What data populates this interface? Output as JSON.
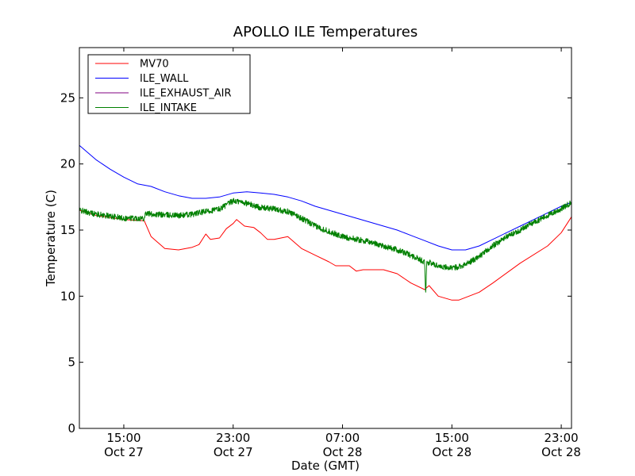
{
  "chart_data": {
    "type": "line",
    "title": "APOLLO ILE Temperatures",
    "xlabel": "Date (GMT)",
    "ylabel": "Temperature (C)",
    "xlim": [
      "Oct 27 11:45",
      "Oct 28 23:45"
    ],
    "ylim": [
      0,
      28.8
    ],
    "grid": false,
    "legend_position": "upper-left",
    "x_ticks": [
      {
        "time": "Oct 27 15:00",
        "label": [
          "15:00",
          "Oct 27"
        ]
      },
      {
        "time": "Oct 27 23:00",
        "label": [
          "23:00",
          "Oct 27"
        ]
      },
      {
        "time": "Oct 28 07:00",
        "label": [
          "07:00",
          "Oct 28"
        ]
      },
      {
        "time": "Oct 28 15:00",
        "label": [
          "15:00",
          "Oct 28"
        ]
      },
      {
        "time": "Oct 28 23:00",
        "label": [
          "23:00",
          "Oct 28"
        ]
      }
    ],
    "y_ticks": [
      0,
      5,
      10,
      15,
      20,
      25
    ],
    "series": [
      {
        "name": "MV70",
        "color": "#ff0000",
        "points": [
          [
            "Oct 27 11:45",
            16.5
          ],
          [
            "Oct 27 13:00",
            16.1
          ],
          [
            "Oct 27 15:00",
            15.8
          ],
          [
            "Oct 27 16:30",
            15.7
          ],
          [
            "Oct 27 17:00",
            14.5
          ],
          [
            "Oct 27 18:00",
            13.6
          ],
          [
            "Oct 27 19:00",
            13.5
          ],
          [
            "Oct 27 20:00",
            13.7
          ],
          [
            "Oct 27 20:30",
            13.9
          ],
          [
            "Oct 27 21:00",
            14.7
          ],
          [
            "Oct 27 21:20",
            14.3
          ],
          [
            "Oct 27 22:00",
            14.4
          ],
          [
            "Oct 27 22:30",
            15.1
          ],
          [
            "Oct 27 23:00",
            15.5
          ],
          [
            "Oct 27 23:15",
            15.8
          ],
          [
            "Oct 27 23:50",
            15.3
          ],
          [
            "Oct 28 00:30",
            15.2
          ],
          [
            "Oct 28 01:00",
            14.8
          ],
          [
            "Oct 28 01:30",
            14.3
          ],
          [
            "Oct 28 02:00",
            14.3
          ],
          [
            "Oct 28 03:00",
            14.5
          ],
          [
            "Oct 28 04:00",
            13.6
          ],
          [
            "Oct 28 05:00",
            13.1
          ],
          [
            "Oct 28 06:00",
            12.6
          ],
          [
            "Oct 28 06:30",
            12.3
          ],
          [
            "Oct 28 07:30",
            12.3
          ],
          [
            "Oct 28 08:00",
            11.9
          ],
          [
            "Oct 28 08:30",
            12.0
          ],
          [
            "Oct 28 10:00",
            12.0
          ],
          [
            "Oct 28 11:00",
            11.7
          ],
          [
            "Oct 28 12:00",
            11.0
          ],
          [
            "Oct 28 13:00",
            10.5
          ],
          [
            "Oct 28 13:20",
            10.8
          ],
          [
            "Oct 28 14:00",
            10.0
          ],
          [
            "Oct 28 15:00",
            9.7
          ],
          [
            "Oct 28 15:30",
            9.7
          ],
          [
            "Oct 28 17:00",
            10.3
          ],
          [
            "Oct 28 18:00",
            11.0
          ],
          [
            "Oct 28 20:00",
            12.5
          ],
          [
            "Oct 28 22:00",
            13.8
          ],
          [
            "Oct 28 23:00",
            14.8
          ],
          [
            "Oct 28 23:45",
            16.0
          ]
        ]
      },
      {
        "name": "ILE_WALL",
        "color": "#0000ff",
        "points": [
          [
            "Oct 27 11:45",
            21.4
          ],
          [
            "Oct 27 13:00",
            20.3
          ],
          [
            "Oct 27 14:00",
            19.6
          ],
          [
            "Oct 27 15:00",
            19.0
          ],
          [
            "Oct 27 16:00",
            18.5
          ],
          [
            "Oct 27 17:00",
            18.3
          ],
          [
            "Oct 27 18:00",
            17.9
          ],
          [
            "Oct 27 19:00",
            17.6
          ],
          [
            "Oct 27 20:00",
            17.4
          ],
          [
            "Oct 27 21:00",
            17.4
          ],
          [
            "Oct 27 22:00",
            17.5
          ],
          [
            "Oct 27 23:00",
            17.8
          ],
          [
            "Oct 28 00:00",
            17.9
          ],
          [
            "Oct 28 01:00",
            17.8
          ],
          [
            "Oct 28 02:00",
            17.7
          ],
          [
            "Oct 28 03:00",
            17.5
          ],
          [
            "Oct 28 04:00",
            17.2
          ],
          [
            "Oct 28 05:00",
            16.8
          ],
          [
            "Oct 28 06:00",
            16.5
          ],
          [
            "Oct 28 07:00",
            16.2
          ],
          [
            "Oct 28 08:00",
            15.9
          ],
          [
            "Oct 28 09:00",
            15.6
          ],
          [
            "Oct 28 10:00",
            15.3
          ],
          [
            "Oct 28 11:00",
            15.0
          ],
          [
            "Oct 28 12:00",
            14.6
          ],
          [
            "Oct 28 13:00",
            14.2
          ],
          [
            "Oct 28 14:00",
            13.8
          ],
          [
            "Oct 28 15:00",
            13.5
          ],
          [
            "Oct 28 16:00",
            13.5
          ],
          [
            "Oct 28 17:00",
            13.8
          ],
          [
            "Oct 28 18:00",
            14.3
          ],
          [
            "Oct 28 19:00",
            14.8
          ],
          [
            "Oct 28 20:00",
            15.3
          ],
          [
            "Oct 28 21:00",
            15.8
          ],
          [
            "Oct 28 22:00",
            16.3
          ],
          [
            "Oct 28 23:00",
            16.8
          ],
          [
            "Oct 28 23:45",
            17.1
          ]
        ]
      },
      {
        "name": "ILE_EXHAUST_AIR",
        "color": "#800080",
        "points": []
      },
      {
        "name": "ILE_INTAKE",
        "color": "#008000",
        "noise": 0.22,
        "points": [
          [
            "Oct 27 11:45",
            16.5
          ],
          [
            "Oct 27 13:00",
            16.2
          ],
          [
            "Oct 27 15:00",
            15.9
          ],
          [
            "Oct 27 16:30",
            15.9
          ],
          [
            "Oct 27 16:35",
            16.3
          ],
          [
            "Oct 27 17:00",
            16.2
          ],
          [
            "Oct 27 19:00",
            16.1
          ],
          [
            "Oct 27 20:00",
            16.2
          ],
          [
            "Oct 27 21:00",
            16.4
          ],
          [
            "Oct 27 22:00",
            16.6
          ],
          [
            "Oct 27 23:00",
            17.2
          ],
          [
            "Oct 27 23:45",
            17.1
          ],
          [
            "Oct 28 01:00",
            16.7
          ],
          [
            "Oct 28 02:00",
            16.6
          ],
          [
            "Oct 28 03:00",
            16.4
          ],
          [
            "Oct 28 04:00",
            15.9
          ],
          [
            "Oct 28 05:00",
            15.3
          ],
          [
            "Oct 28 06:00",
            14.9
          ],
          [
            "Oct 28 07:00",
            14.5
          ],
          [
            "Oct 28 08:00",
            14.3
          ],
          [
            "Oct 28 09:00",
            14.1
          ],
          [
            "Oct 28 10:00",
            13.8
          ],
          [
            "Oct 28 11:00",
            13.5
          ],
          [
            "Oct 28 12:00",
            13.1
          ],
          [
            "Oct 28 13:00",
            12.6
          ],
          [
            "Oct 28 13:05",
            10.3
          ],
          [
            "Oct 28 13:10",
            12.6
          ],
          [
            "Oct 28 14:00",
            12.3
          ],
          [
            "Oct 28 15:00",
            12.1
          ],
          [
            "Oct 28 16:00",
            12.4
          ],
          [
            "Oct 28 17:00",
            13.0
          ],
          [
            "Oct 28 18:00",
            13.8
          ],
          [
            "Oct 28 19:00",
            14.5
          ],
          [
            "Oct 28 20:00",
            15.0
          ],
          [
            "Oct 28 21:00",
            15.6
          ],
          [
            "Oct 28 22:00",
            16.1
          ],
          [
            "Oct 28 23:00",
            16.6
          ],
          [
            "Oct 28 23:45",
            17.1
          ]
        ]
      }
    ]
  }
}
